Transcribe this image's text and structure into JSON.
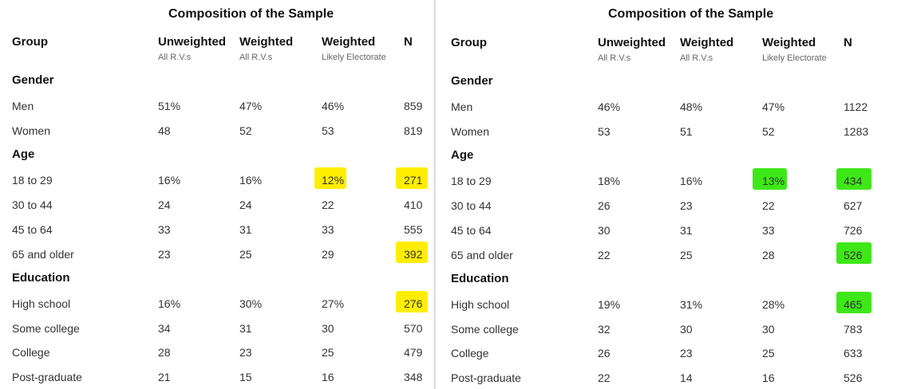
{
  "highlight_colors": {
    "yellow": "#ffee00",
    "green": "#3ee818"
  },
  "tables": [
    {
      "title": "Composition of the Sample",
      "headers": [
        {
          "label": "Group",
          "sub": ""
        },
        {
          "label": "Unweighted",
          "sub": "All R.V.s"
        },
        {
          "label": "Weighted",
          "sub": "All R.V.s"
        },
        {
          "label": "Weighted",
          "sub": "Likely Electorate"
        },
        {
          "label": "N",
          "sub": ""
        }
      ],
      "rows": [
        {
          "type": "section",
          "label": "Gender"
        },
        {
          "type": "data",
          "cells": [
            "Men",
            "51%",
            "47%",
            "46%",
            "859"
          ]
        },
        {
          "type": "data",
          "cells": [
            "Women",
            "48",
            "52",
            "53",
            "819"
          ]
        },
        {
          "type": "section",
          "label": "Age"
        },
        {
          "type": "data",
          "cells": [
            "18 to 29",
            "16%",
            "16%",
            "12%",
            "271"
          ],
          "highlight": [
            3,
            4
          ]
        },
        {
          "type": "data",
          "cells": [
            "30 to 44",
            "24",
            "24",
            "22",
            "410"
          ]
        },
        {
          "type": "data",
          "cells": [
            "45 to 64",
            "33",
            "31",
            "33",
            "555"
          ]
        },
        {
          "type": "data",
          "cells": [
            "65 and older",
            "23",
            "25",
            "29",
            "392"
          ],
          "highlight": [
            4
          ]
        },
        {
          "type": "section",
          "label": "Education"
        },
        {
          "type": "data",
          "cells": [
            "High school",
            "16%",
            "30%",
            "27%",
            "276"
          ],
          "highlight": [
            4
          ]
        },
        {
          "type": "data",
          "cells": [
            "Some college",
            "34",
            "31",
            "30",
            "570"
          ]
        },
        {
          "type": "data",
          "cells": [
            "College",
            "28",
            "23",
            "25",
            "479"
          ]
        },
        {
          "type": "data",
          "cells": [
            "Post-graduate",
            "21",
            "15",
            "16",
            "348"
          ]
        }
      ]
    },
    {
      "title": "Composition of the Sample",
      "headers": [
        {
          "label": "Group",
          "sub": ""
        },
        {
          "label": "Unweighted",
          "sub": "All R.V.s"
        },
        {
          "label": "Weighted",
          "sub": "All R.V.s"
        },
        {
          "label": "Weighted",
          "sub": "Likely Electorate"
        },
        {
          "label": "N",
          "sub": ""
        }
      ],
      "rows": [
        {
          "type": "section",
          "label": "Gender"
        },
        {
          "type": "data",
          "cells": [
            "Men",
            "46%",
            "48%",
            "47%",
            "1122"
          ]
        },
        {
          "type": "data",
          "cells": [
            "Women",
            "53",
            "51",
            "52",
            "1283"
          ]
        },
        {
          "type": "section",
          "label": "Age"
        },
        {
          "type": "data",
          "cells": [
            "18 to 29",
            "18%",
            "16%",
            "13%",
            "434"
          ],
          "highlight": [
            3,
            4
          ]
        },
        {
          "type": "data",
          "cells": [
            "30 to 44",
            "26",
            "23",
            "22",
            "627"
          ]
        },
        {
          "type": "data",
          "cells": [
            "45 to 64",
            "30",
            "31",
            "33",
            "726"
          ]
        },
        {
          "type": "data",
          "cells": [
            "65 and older",
            "22",
            "25",
            "28",
            "526"
          ],
          "highlight": [
            4
          ]
        },
        {
          "type": "section",
          "label": "Education"
        },
        {
          "type": "data",
          "cells": [
            "High school",
            "19%",
            "31%",
            "28%",
            "465"
          ],
          "highlight": [
            4
          ]
        },
        {
          "type": "data",
          "cells": [
            "Some college",
            "32",
            "30",
            "30",
            "783"
          ]
        },
        {
          "type": "data",
          "cells": [
            "College",
            "26",
            "23",
            "25",
            "633"
          ]
        },
        {
          "type": "data",
          "cells": [
            "Post-graduate",
            "22",
            "14",
            "16",
            "526"
          ]
        }
      ]
    }
  ]
}
